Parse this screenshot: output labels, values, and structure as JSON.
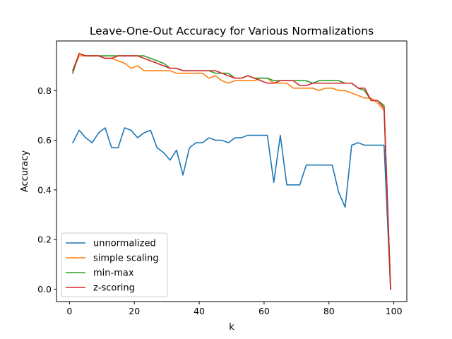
{
  "chart_data": {
    "type": "line",
    "title": "Leave-One-Out Accuracy for Various Normalizations",
    "xlabel": "k",
    "ylabel": "Accuracy",
    "xlim": [
      -4,
      104
    ],
    "ylim": [
      -0.05,
      1.0
    ],
    "xticks": [
      0,
      20,
      40,
      60,
      80,
      100
    ],
    "yticks": [
      0.0,
      0.2,
      0.4,
      0.6,
      0.8
    ],
    "ytick_labels": [
      "0.0",
      "0.2",
      "0.4",
      "0.6",
      "0.8"
    ],
    "grid": false,
    "legend_position": "lower-left",
    "x": [
      1,
      3,
      5,
      7,
      9,
      11,
      13,
      15,
      17,
      19,
      21,
      23,
      25,
      27,
      29,
      31,
      33,
      35,
      37,
      39,
      41,
      43,
      45,
      47,
      49,
      51,
      53,
      55,
      57,
      59,
      61,
      63,
      65,
      67,
      69,
      71,
      73,
      75,
      77,
      79,
      81,
      83,
      85,
      87,
      89,
      91,
      93,
      95,
      97,
      99
    ],
    "series": [
      {
        "name": "unnormalized",
        "color": "#1f77b4",
        "values": [
          0.59,
          0.64,
          0.61,
          0.59,
          0.63,
          0.65,
          0.57,
          0.57,
          0.65,
          0.64,
          0.61,
          0.63,
          0.64,
          0.57,
          0.55,
          0.52,
          0.56,
          0.46,
          0.57,
          0.59,
          0.59,
          0.61,
          0.6,
          0.6,
          0.59,
          0.61,
          0.61,
          0.62,
          0.62,
          0.62,
          0.62,
          0.43,
          0.62,
          0.42,
          0.42,
          0.42,
          0.5,
          0.5,
          0.5,
          0.5,
          0.5,
          0.39,
          0.33,
          0.58,
          0.59,
          0.58,
          0.58,
          0.58,
          0.58,
          0.0
        ]
      },
      {
        "name": "simple scaling",
        "color": "#ff7f0e",
        "values": [
          0.88,
          0.94,
          0.94,
          0.94,
          0.94,
          0.93,
          0.93,
          0.92,
          0.91,
          0.89,
          0.9,
          0.88,
          0.88,
          0.88,
          0.88,
          0.88,
          0.87,
          0.87,
          0.87,
          0.87,
          0.87,
          0.85,
          0.86,
          0.84,
          0.83,
          0.84,
          0.84,
          0.84,
          0.84,
          0.85,
          0.85,
          0.83,
          0.83,
          0.83,
          0.81,
          0.81,
          0.81,
          0.81,
          0.8,
          0.81,
          0.81,
          0.8,
          0.8,
          0.79,
          0.78,
          0.77,
          0.77,
          0.75,
          0.72,
          0.0
        ]
      },
      {
        "name": "min-max",
        "color": "#2ca02c",
        "values": [
          0.87,
          0.95,
          0.94,
          0.94,
          0.94,
          0.94,
          0.94,
          0.94,
          0.94,
          0.94,
          0.94,
          0.94,
          0.93,
          0.92,
          0.91,
          0.89,
          0.89,
          0.88,
          0.88,
          0.88,
          0.88,
          0.88,
          0.87,
          0.87,
          0.87,
          0.85,
          0.85,
          0.86,
          0.85,
          0.85,
          0.85,
          0.84,
          0.84,
          0.84,
          0.84,
          0.84,
          0.84,
          0.83,
          0.84,
          0.84,
          0.84,
          0.84,
          0.83,
          0.83,
          0.81,
          0.8,
          0.76,
          0.76,
          0.74,
          0.0
        ]
      },
      {
        "name": "z-scoring",
        "color": "#d62728",
        "values": [
          0.88,
          0.95,
          0.94,
          0.94,
          0.94,
          0.93,
          0.93,
          0.94,
          0.94,
          0.94,
          0.94,
          0.93,
          0.92,
          0.91,
          0.9,
          0.89,
          0.89,
          0.88,
          0.88,
          0.88,
          0.88,
          0.88,
          0.88,
          0.87,
          0.86,
          0.85,
          0.85,
          0.86,
          0.85,
          0.84,
          0.83,
          0.83,
          0.84,
          0.84,
          0.84,
          0.82,
          0.82,
          0.83,
          0.83,
          0.83,
          0.83,
          0.83,
          0.83,
          0.83,
          0.81,
          0.81,
          0.76,
          0.76,
          0.73,
          0.0
        ]
      }
    ]
  }
}
